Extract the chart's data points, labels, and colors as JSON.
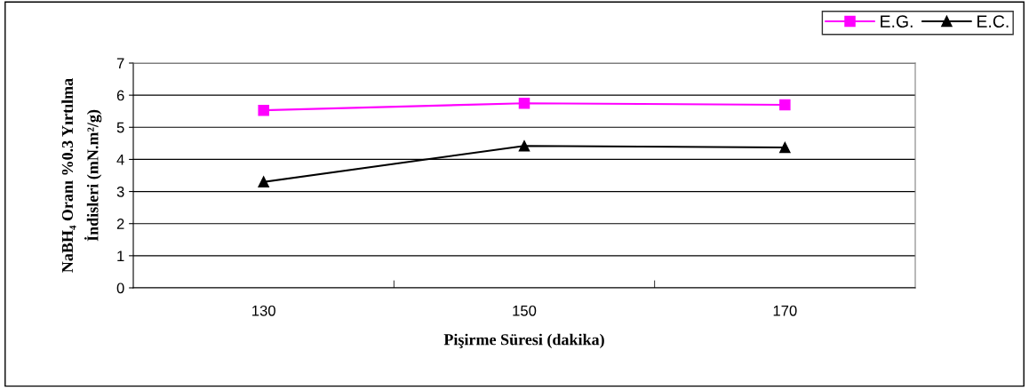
{
  "chart_data": {
    "type": "line",
    "xlabel": "Pişirme Süresi (dakika)",
    "ylabel": "NaBH₄ Oranı %0.3 Yırtılma\nİndisleri (mN.m²/g)",
    "categories": [
      "130",
      "150",
      "170"
    ],
    "series": [
      {
        "name": "E.G.",
        "color": "#ff00ff",
        "marker": "square",
        "values": [
          5.53,
          5.75,
          5.7
        ]
      },
      {
        "name": "E.C.",
        "color": "#000000",
        "marker": "triangle",
        "values": [
          3.3,
          4.42,
          4.37
        ]
      }
    ],
    "ylim": [
      0,
      7
    ],
    "yticks": [
      0,
      1,
      2,
      3,
      4,
      5,
      6,
      7
    ],
    "grid": "y",
    "legend": "top right",
    "line_style": "solid"
  }
}
